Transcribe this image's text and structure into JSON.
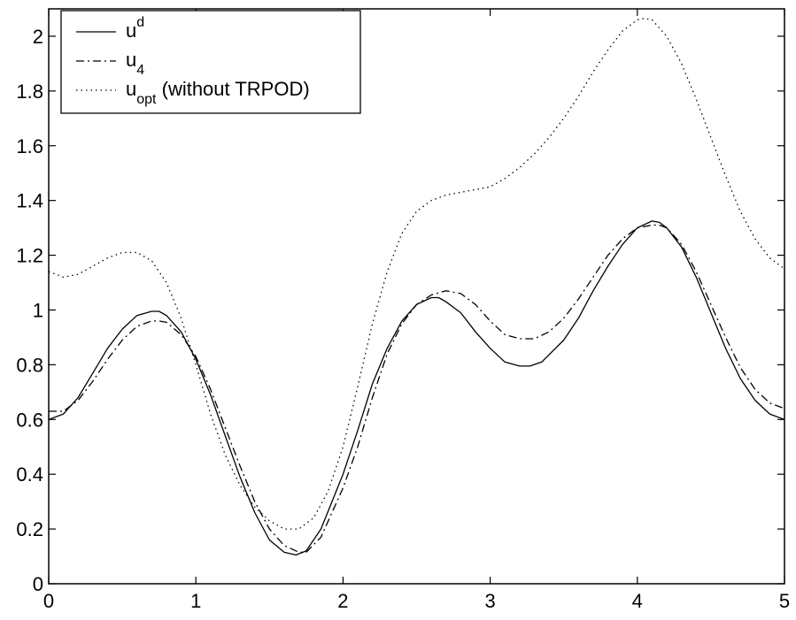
{
  "chart_data": {
    "type": "line",
    "title": "",
    "xlabel": "",
    "ylabel": "",
    "xlim": [
      0,
      5
    ],
    "ylim": [
      0,
      2.1
    ],
    "x_ticks": [
      0,
      1,
      2,
      3,
      4,
      5
    ],
    "x_tick_labels": [
      "0",
      "1",
      "2",
      "3",
      "4",
      "5"
    ],
    "y_ticks": [
      0,
      0.2,
      0.4,
      0.6,
      0.8,
      1,
      1.2,
      1.4,
      1.6,
      1.8,
      2
    ],
    "y_tick_labels": [
      "0",
      "0.2",
      "0.4",
      "0.6",
      "0.8",
      "1",
      "1.2",
      "1.4",
      "1.6",
      "1.8",
      "2"
    ],
    "grid": false,
    "legend_position": "top-left",
    "series": [
      {
        "legend_base": "u",
        "legend_script": "d",
        "legend_script_type": "super",
        "legend_suffix": "",
        "line_style": "solid",
        "color": "#000000",
        "x": [
          0,
          0.1,
          0.2,
          0.3,
          0.4,
          0.5,
          0.6,
          0.7,
          0.75,
          0.8,
          0.9,
          1.0,
          1.1,
          1.2,
          1.3,
          1.4,
          1.5,
          1.6,
          1.68,
          1.75,
          1.85,
          2.0,
          2.1,
          2.2,
          2.3,
          2.4,
          2.5,
          2.6,
          2.65,
          2.7,
          2.8,
          2.9,
          3.0,
          3.1,
          3.2,
          3.27,
          3.35,
          3.5,
          3.6,
          3.7,
          3.8,
          3.9,
          4.0,
          4.1,
          4.15,
          4.2,
          4.3,
          4.4,
          4.5,
          4.6,
          4.7,
          4.8,
          4.9,
          5.0
        ],
        "y": [
          0.6,
          0.62,
          0.68,
          0.77,
          0.86,
          0.93,
          0.98,
          0.995,
          0.995,
          0.98,
          0.92,
          0.82,
          0.69,
          0.54,
          0.39,
          0.26,
          0.16,
          0.115,
          0.105,
          0.12,
          0.2,
          0.4,
          0.56,
          0.73,
          0.86,
          0.96,
          1.02,
          1.045,
          1.045,
          1.03,
          0.99,
          0.92,
          0.86,
          0.81,
          0.795,
          0.795,
          0.81,
          0.89,
          0.97,
          1.07,
          1.16,
          1.24,
          1.3,
          1.325,
          1.32,
          1.3,
          1.23,
          1.12,
          0.99,
          0.86,
          0.75,
          0.67,
          0.62,
          0.6
        ]
      },
      {
        "legend_base": "u",
        "legend_script": "4",
        "legend_script_type": "sub",
        "legend_suffix": "",
        "line_style": "dashdot",
        "color": "#000000",
        "x": [
          0,
          0.1,
          0.2,
          0.3,
          0.4,
          0.5,
          0.6,
          0.7,
          0.75,
          0.8,
          0.9,
          1.0,
          1.1,
          1.2,
          1.3,
          1.4,
          1.5,
          1.6,
          1.7,
          1.75,
          1.85,
          2.0,
          2.1,
          2.2,
          2.3,
          2.4,
          2.5,
          2.6,
          2.7,
          2.8,
          2.9,
          3.0,
          3.1,
          3.2,
          3.3,
          3.4,
          3.5,
          3.6,
          3.7,
          3.8,
          3.9,
          4.0,
          4.1,
          4.15,
          4.2,
          4.3,
          4.4,
          4.5,
          4.6,
          4.7,
          4.8,
          4.9,
          5.0
        ],
        "y": [
          0.63,
          0.63,
          0.67,
          0.74,
          0.82,
          0.89,
          0.94,
          0.96,
          0.96,
          0.955,
          0.91,
          0.83,
          0.71,
          0.57,
          0.43,
          0.3,
          0.2,
          0.14,
          0.115,
          0.115,
          0.17,
          0.35,
          0.5,
          0.68,
          0.84,
          0.95,
          1.02,
          1.055,
          1.07,
          1.06,
          1.02,
          0.96,
          0.91,
          0.895,
          0.895,
          0.92,
          0.97,
          1.04,
          1.12,
          1.2,
          1.26,
          1.3,
          1.31,
          1.31,
          1.3,
          1.24,
          1.14,
          1.02,
          0.9,
          0.79,
          0.71,
          0.66,
          0.64
        ]
      },
      {
        "legend_base": "u",
        "legend_script": "opt",
        "legend_script_type": "sub",
        "legend_suffix": " (without TRPOD)",
        "line_style": "dotted",
        "color": "#000000",
        "x": [
          0,
          0.1,
          0.2,
          0.3,
          0.4,
          0.5,
          0.6,
          0.7,
          0.8,
          0.9,
          1.0,
          1.1,
          1.2,
          1.3,
          1.4,
          1.5,
          1.6,
          1.7,
          1.8,
          1.9,
          2.0,
          2.1,
          2.2,
          2.3,
          2.4,
          2.5,
          2.6,
          2.7,
          2.8,
          2.9,
          3.0,
          3.1,
          3.2,
          3.3,
          3.4,
          3.5,
          3.6,
          3.7,
          3.8,
          3.9,
          4.0,
          4.05,
          4.1,
          4.2,
          4.3,
          4.4,
          4.5,
          4.6,
          4.7,
          4.8,
          4.9,
          5.0
        ],
        "y": [
          1.14,
          1.12,
          1.13,
          1.16,
          1.19,
          1.21,
          1.21,
          1.18,
          1.1,
          0.97,
          0.8,
          0.62,
          0.47,
          0.36,
          0.28,
          0.23,
          0.2,
          0.2,
          0.24,
          0.34,
          0.5,
          0.72,
          0.95,
          1.14,
          1.28,
          1.36,
          1.4,
          1.42,
          1.43,
          1.44,
          1.45,
          1.48,
          1.52,
          1.57,
          1.63,
          1.7,
          1.78,
          1.87,
          1.95,
          2.02,
          2.06,
          2.065,
          2.06,
          2.0,
          1.9,
          1.77,
          1.63,
          1.49,
          1.36,
          1.26,
          1.19,
          1.15
        ]
      }
    ]
  }
}
